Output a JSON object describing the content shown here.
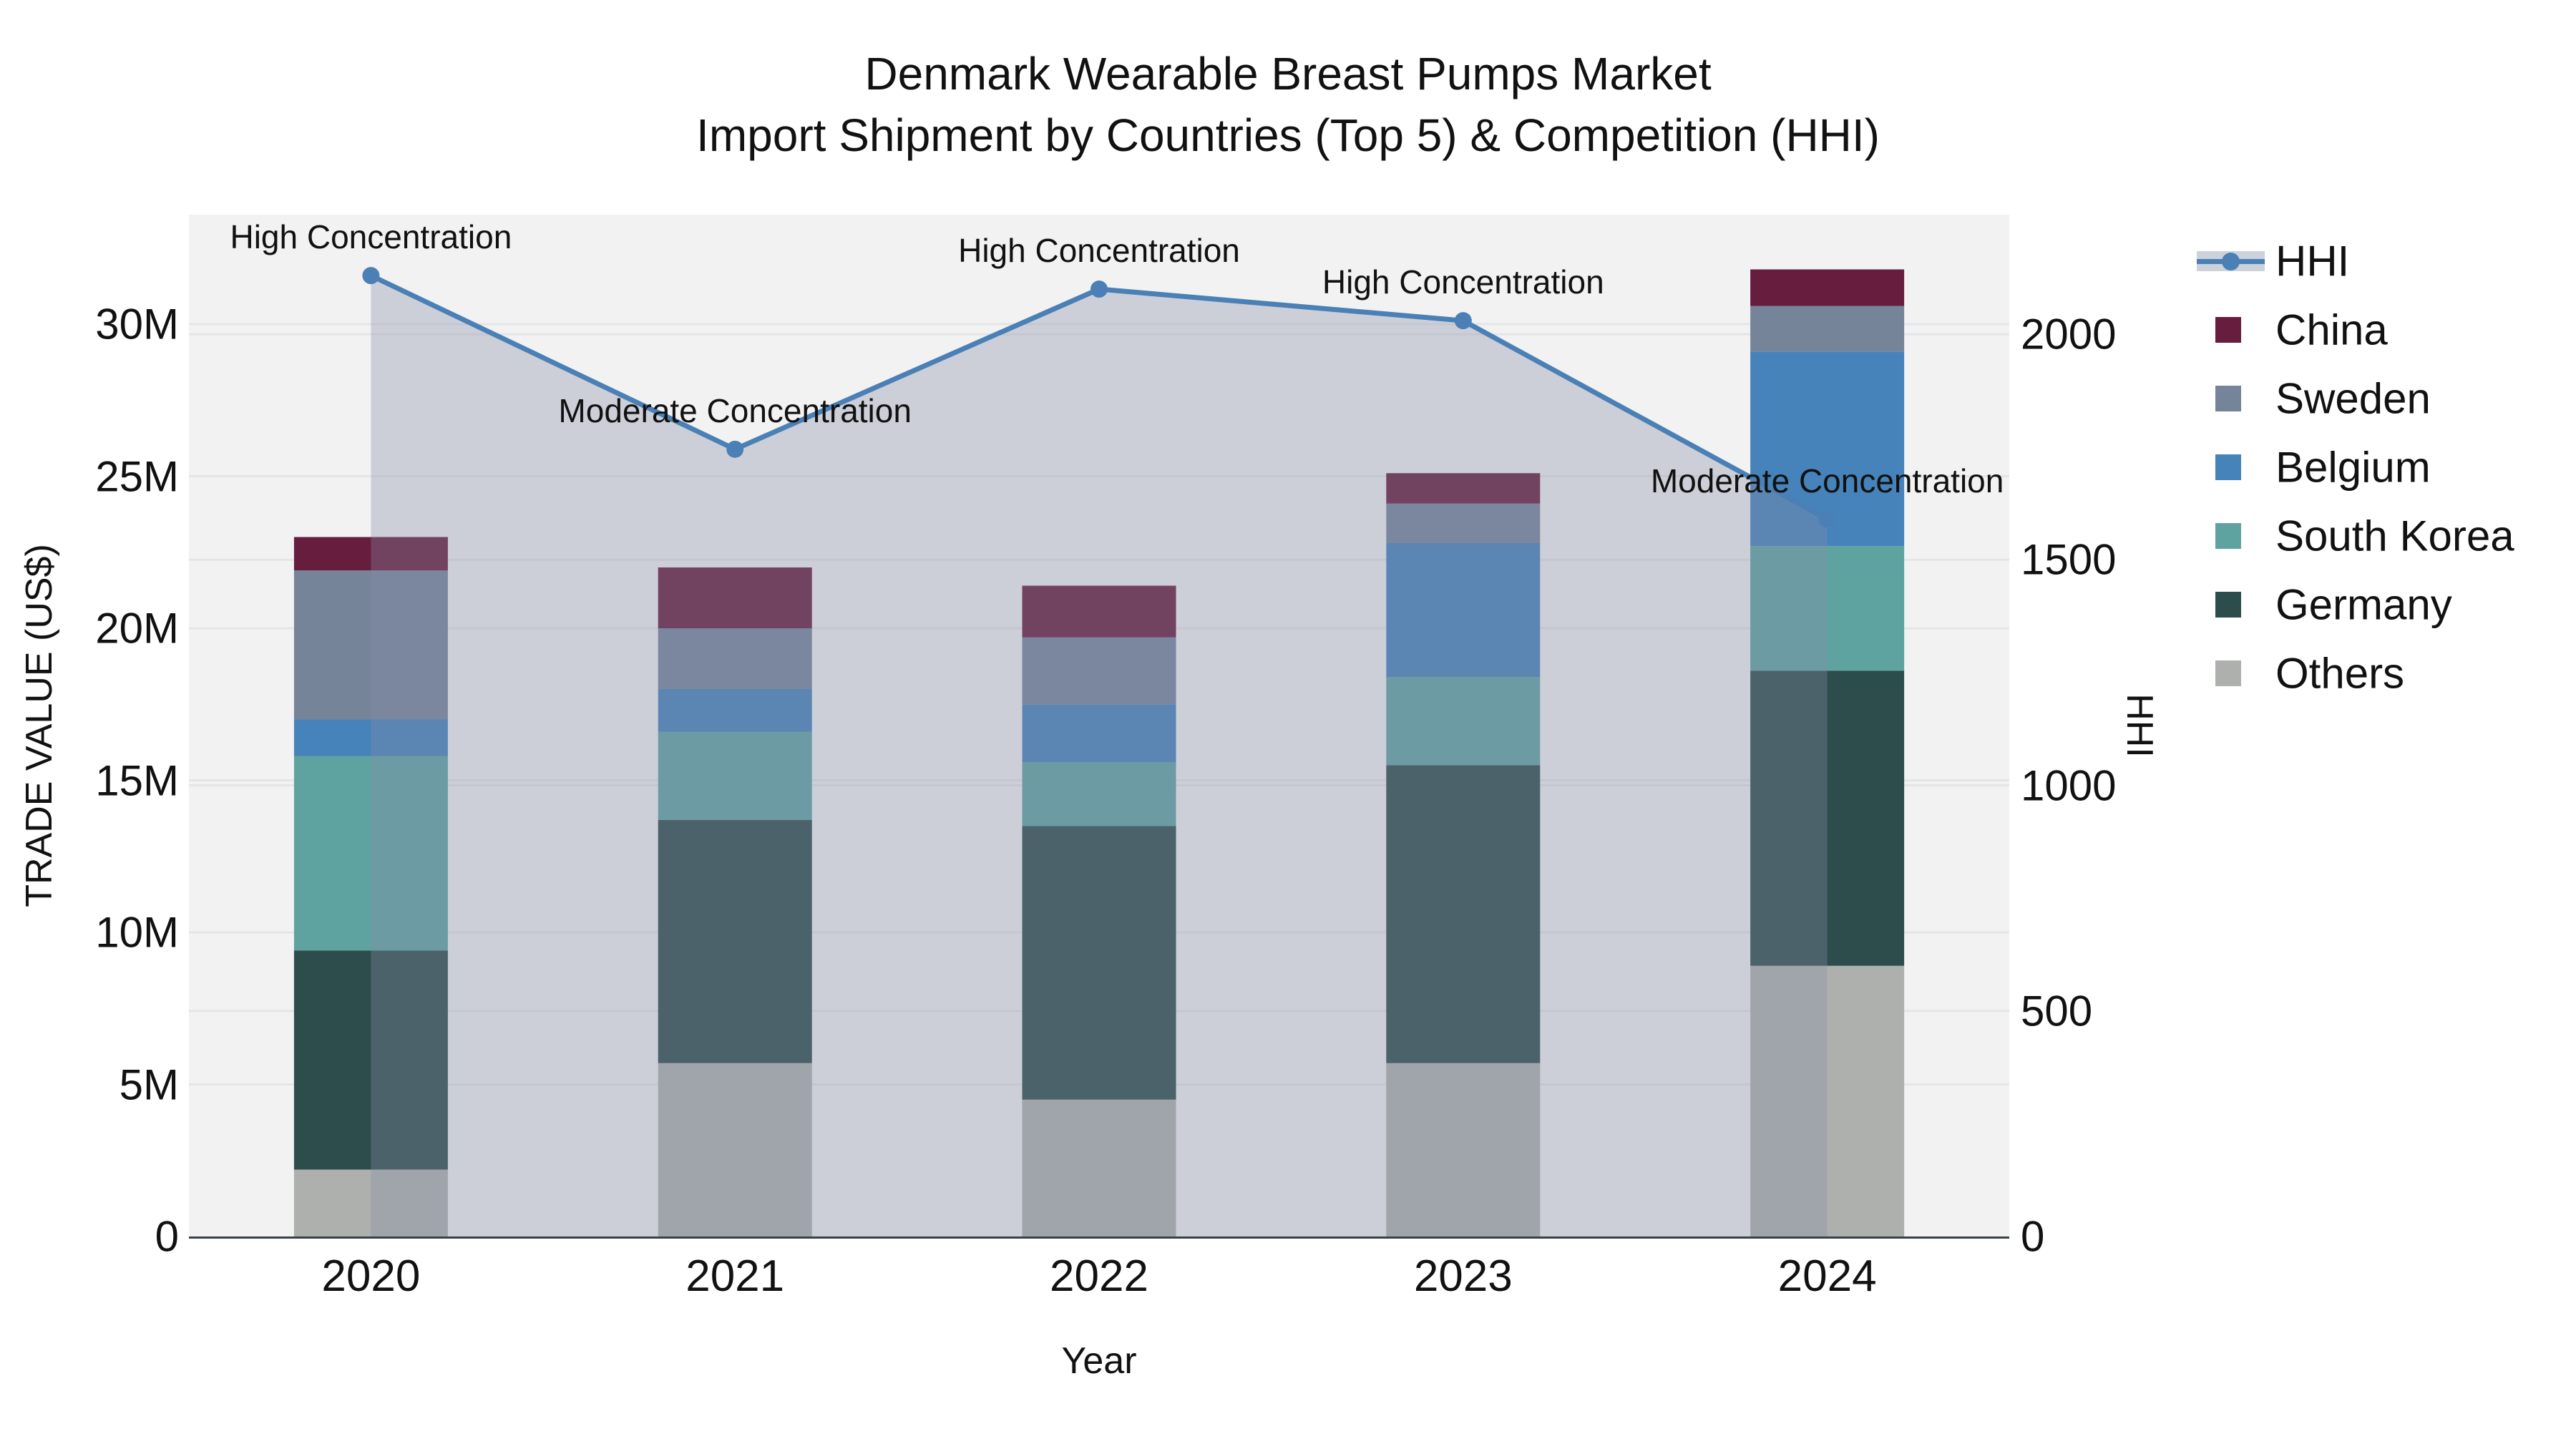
{
  "title": {
    "line1": "Denmark Wearable Breast Pumps Market",
    "line2": "Import Shipment by Countries (Top 5) & Competition (HHI)"
  },
  "axes": {
    "x": {
      "title": "Year",
      "ticks": [
        "2020",
        "2021",
        "2022",
        "2023",
        "2024"
      ]
    },
    "y_left": {
      "title": "TRADE VALUE (US$)",
      "ticks": [
        {
          "label": "0",
          "value": 0
        },
        {
          "label": "5M",
          "value": 5
        },
        {
          "label": "10M",
          "value": 10
        },
        {
          "label": "15M",
          "value": 15
        },
        {
          "label": "20M",
          "value": 20
        },
        {
          "label": "25M",
          "value": 25
        },
        {
          "label": "30M",
          "value": 30
        }
      ]
    },
    "y_right": {
      "title": "HHI",
      "ticks": [
        {
          "label": "0",
          "value": 0
        },
        {
          "label": "500",
          "value": 500
        },
        {
          "label": "1000",
          "value": 1000
        },
        {
          "label": "1500",
          "value": 1500
        },
        {
          "label": "2000",
          "value": 2000
        }
      ]
    }
  },
  "legend": {
    "items": [
      {
        "label": "HHI",
        "type": "line",
        "color": "#4a80b6"
      },
      {
        "label": "China",
        "type": "swatch",
        "color": "#661d3e"
      },
      {
        "label": "Sweden",
        "type": "swatch",
        "color": "#76849a"
      },
      {
        "label": "Belgium",
        "type": "swatch",
        "color": "#4583ba"
      },
      {
        "label": "South Korea",
        "type": "swatch",
        "color": "#5fa3a1"
      },
      {
        "label": "Germany",
        "type": "swatch",
        "color": "#2d4d4d"
      },
      {
        "label": "Others",
        "type": "swatch",
        "color": "#aeb0ae"
      }
    ]
  },
  "chart_data": {
    "type": "bar+line",
    "title": "Denmark Wearable Breast Pumps Market — Import Shipment by Countries (Top 5) & Competition (HHI)",
    "xlabel": "Year",
    "ylabel_left": "TRADE VALUE (US$)",
    "ylabel_right": "HHI",
    "categories": [
      "2020",
      "2021",
      "2022",
      "2023",
      "2024"
    ],
    "bar_unit": "M US$",
    "stack_order": "bottom to top",
    "series": [
      {
        "name": "Others",
        "color": "#aeb0ae",
        "values": [
          2.2,
          5.7,
          4.5,
          5.7,
          8.9
        ]
      },
      {
        "name": "Germany",
        "color": "#2d4d4d",
        "values": [
          7.2,
          8.0,
          9.0,
          9.8,
          9.7
        ]
      },
      {
        "name": "South Korea",
        "color": "#5fa3a1",
        "values": [
          6.4,
          2.9,
          2.1,
          2.9,
          4.1
        ]
      },
      {
        "name": "Belgium",
        "color": "#4583ba",
        "values": [
          1.2,
          1.4,
          1.9,
          4.4,
          6.4
        ]
      },
      {
        "name": "Sweden",
        "color": "#76849a",
        "values": [
          4.9,
          2.0,
          2.2,
          1.3,
          1.5
        ]
      },
      {
        "name": "China",
        "color": "#661d3e",
        "values": [
          1.1,
          2.0,
          1.7,
          1.0,
          1.2
        ]
      }
    ],
    "bar_totals": [
      23.0,
      22.0,
      21.4,
      25.1,
      31.8
    ],
    "hhi": {
      "name": "HHI",
      "values": [
        2130,
        1745,
        2100,
        2030,
        1590
      ],
      "annotations": [
        "High Concentration",
        "Moderate Concentration",
        "High Concentration",
        "High Concentration",
        "Moderate Concentration"
      ],
      "line_color": "#4a80b6",
      "fill_color": "rgba(134,141,167,0.34)"
    },
    "y_left_range": [
      0,
      33.6
    ],
    "y_right_range": [
      0,
      2265
    ],
    "grid": true,
    "legend_position": "right",
    "plot_bg": "#f2f2f2",
    "grid_color": "#e4e5e6",
    "axis_line_color": "#36424a"
  }
}
